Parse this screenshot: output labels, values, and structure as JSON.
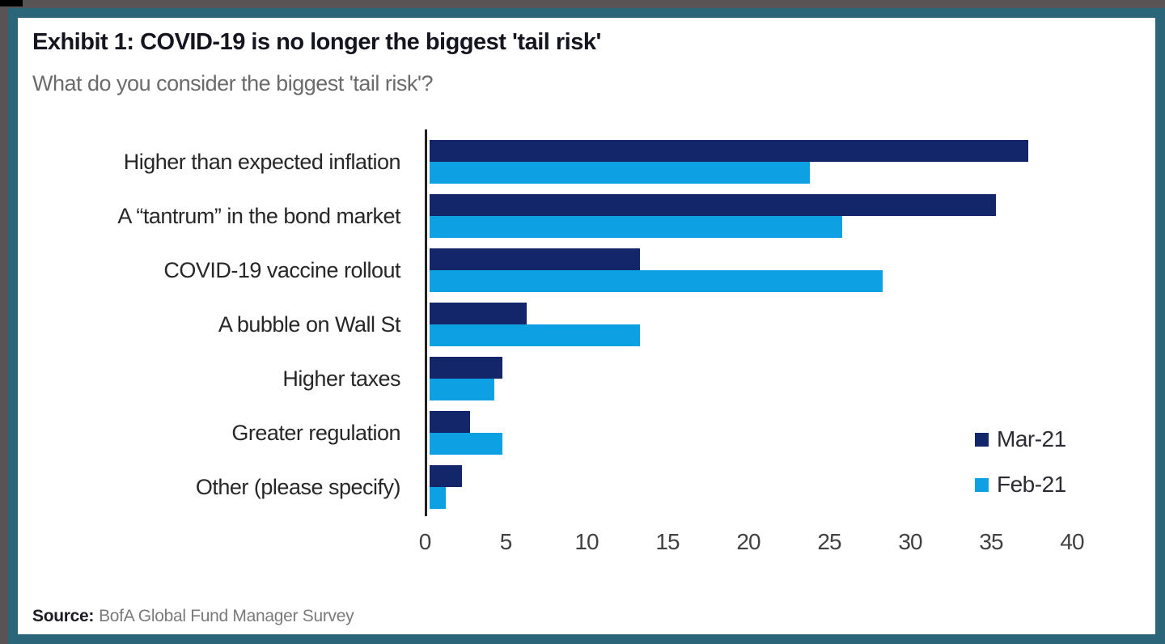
{
  "chart_data": {
    "type": "bar",
    "orientation": "horizontal",
    "title": "Exhibit 1: COVID-19 is no longer the biggest 'tail risk'",
    "subtitle": "What do you consider the biggest 'tail risk'?",
    "categories": [
      "Higher than expected inflation",
      "A “tantrum” in the bond market",
      "COVID-19 vaccine rollout",
      "A bubble on Wall St",
      "Higher taxes",
      "Greater regulation",
      "Other (please specify)"
    ],
    "series": [
      {
        "name": "Mar-21",
        "color": "#14266a",
        "values": [
          37,
          35,
          13,
          6,
          4.5,
          2.5,
          2
        ]
      },
      {
        "name": "Feb-21",
        "color": "#0da0e2",
        "values": [
          23.5,
          25.5,
          28,
          13,
          4,
          4.5,
          1
        ]
      }
    ],
    "x_ticks": [
      0,
      5,
      10,
      15,
      20,
      25,
      30,
      35,
      40
    ],
    "xlim": [
      0,
      40
    ],
    "grid": false,
    "legend_position": "right-lower",
    "source_label": "Source:",
    "source_text": "BofA Global Fund Manager Survey"
  },
  "colors": {
    "frame_teal": "#2b6579",
    "outer_gray": "#585355",
    "card_bg": "#ffffff",
    "navy": "#14266a",
    "light_blue": "#0da0e2",
    "title_text": "#15151f",
    "subtitle_text": "#6b6b6b",
    "category_text": "#272727",
    "tick_text": "#414141",
    "axis_line": "#222222",
    "source_text_gray": "#7a7a7a"
  }
}
